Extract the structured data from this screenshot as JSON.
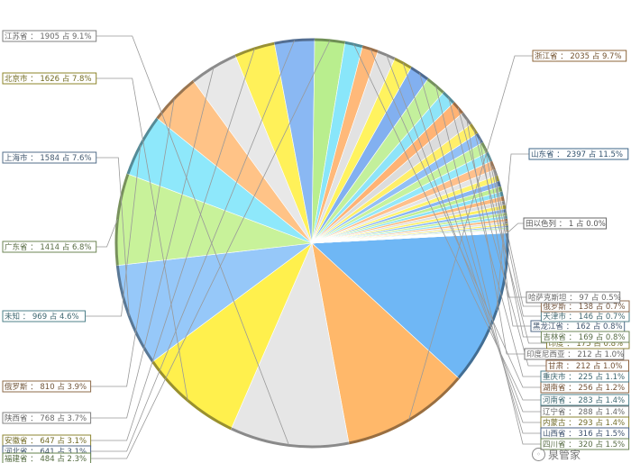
{
  "chart_data": {
    "type": "pie",
    "label_format": "{name} ： {value} 占 {pct}",
    "slices": [
      {
        "name": "山东省",
        "value": 2397,
        "pct": "11.5%",
        "color": "#6fb7f5"
      },
      {
        "name": "浙江省",
        "value": 2035,
        "pct": "9.7%",
        "color": "#ffb86a"
      },
      {
        "name": "江苏省",
        "value": 1905,
        "pct": "9.1%",
        "color": "#e6e6e6"
      },
      {
        "name": "北京市",
        "value": 1626,
        "pct": "7.8%",
        "color": "#fff04d"
      },
      {
        "name": "上海市",
        "value": 1584,
        "pct": "7.6%",
        "color": "#96c8f9"
      },
      {
        "name": "广东省",
        "value": 1414,
        "pct": "6.8%",
        "color": "#c8f29a"
      },
      {
        "name": "未知",
        "value": 969,
        "pct": "4.6%",
        "color": "#8ee8fb"
      },
      {
        "name": "俄罗斯",
        "value": 810,
        "pct": "3.9%",
        "color": "#ffc387"
      },
      {
        "name": "陕西省",
        "value": 768,
        "pct": "3.7%",
        "color": "#e8e8e8"
      },
      {
        "name": "安徽省",
        "value": 647,
        "pct": "3.1%",
        "color": "#fff159"
      },
      {
        "name": "河北省",
        "value": 641,
        "pct": "3.1%",
        "color": "#8ab8f3"
      },
      {
        "name": "福建省",
        "value": 484,
        "pct": "2.3%",
        "color": "#b9ee8e"
      },
      {
        "name": "河南省",
        "value": 283,
        "pct": "1.4%",
        "color": "#89e6fa"
      },
      {
        "name": "湖南省",
        "value": 256,
        "pct": "1.2%",
        "color": "#ffb97a"
      },
      {
        "name": "辽宁省",
        "value": 288,
        "pct": "1.4%",
        "color": "#e2e2e2"
      },
      {
        "name": "内蒙古",
        "value": 293,
        "pct": "1.4%",
        "color": "#fff35f"
      },
      {
        "name": "山西省",
        "value": 316,
        "pct": "1.5%",
        "color": "#82b0f0"
      },
      {
        "name": "四川省",
        "value": 320,
        "pct": "1.5%",
        "color": "#c3f09c"
      },
      {
        "name": "重庆市",
        "value": 225,
        "pct": "1.1%",
        "color": "#8ee4f8"
      },
      {
        "name": "甘肃",
        "value": 212,
        "pct": "1.0%",
        "color": "#ffb375"
      },
      {
        "name": "印度尼西亚",
        "value": 212,
        "pct": "1.0%",
        "color": "#dcdcdc"
      },
      {
        "name": "印度",
        "value": 175,
        "pct": "0.8%",
        "color": "#ffef6a"
      },
      {
        "name": "黑龙江省",
        "value": 162,
        "pct": "0.8%",
        "color": "#92c0f6"
      },
      {
        "name": "吉林省",
        "value": 169,
        "pct": "0.8%",
        "color": "#c6f29f"
      },
      {
        "name": "天津市",
        "value": 146,
        "pct": "0.7%",
        "color": "#95e8fa"
      },
      {
        "name": "俄罗斯",
        "value": 138,
        "pct": "0.7%",
        "color": "#ffc08c"
      },
      {
        "name": "哈萨克斯坦",
        "value": 97,
        "pct": "0.5%",
        "color": "#e5e5e5"
      },
      {
        "name": "",
        "value": 90,
        "pct": "",
        "color": "#fff46e"
      },
      {
        "name": "",
        "value": 85,
        "pct": "",
        "color": "#8ab6f2"
      },
      {
        "name": "",
        "value": 80,
        "pct": "",
        "color": "#c0ef95"
      },
      {
        "name": "",
        "value": 75,
        "pct": "",
        "color": "#8de3f6"
      },
      {
        "name": "",
        "value": 70,
        "pct": "",
        "color": "#ffba7e"
      },
      {
        "name": "",
        "value": 65,
        "pct": "",
        "color": "#dfdfdf"
      },
      {
        "name": "",
        "value": 60,
        "pct": "",
        "color": "#fff064"
      },
      {
        "name": "",
        "value": 55,
        "pct": "",
        "color": "#8fbdf4"
      },
      {
        "name": "",
        "value": 50,
        "pct": "",
        "color": "#c5f19a"
      },
      {
        "name": "",
        "value": 45,
        "pct": "",
        "color": "#93e6f9"
      },
      {
        "name": "",
        "value": 40,
        "pct": "",
        "color": "#ffbc82"
      },
      {
        "name": "",
        "value": 35,
        "pct": "",
        "color": "#e0e0e0"
      },
      {
        "name": "",
        "value": 30,
        "pct": "",
        "color": "#fff26a"
      },
      {
        "name": "",
        "value": 25,
        "pct": "",
        "color": "#8fb9f2"
      },
      {
        "name": "",
        "value": 20,
        "pct": "",
        "color": "#c0ee92"
      },
      {
        "name": "",
        "value": 15,
        "pct": "",
        "color": "#90e2f5"
      },
      {
        "name": "",
        "value": 12,
        "pct": "",
        "color": "#ffbd85"
      },
      {
        "name": "",
        "value": 10,
        "pct": "",
        "color": "#dddddd"
      },
      {
        "name": "",
        "value": 8,
        "pct": "",
        "color": "#fff16a"
      },
      {
        "name": "",
        "value": 6,
        "pct": "",
        "color": "#8cbaf2"
      },
      {
        "name": "",
        "value": 5,
        "pct": "",
        "color": "#c2ef96"
      },
      {
        "name": "",
        "value": 4,
        "pct": "",
        "color": "#92e5f8"
      },
      {
        "name": "",
        "value": 3,
        "pct": "",
        "color": "#ffbf86"
      },
      {
        "name": "",
        "value": 2,
        "pct": "",
        "color": "#e2e2e2"
      },
      {
        "name": "田以色列",
        "value": 1,
        "pct": "0.0%",
        "color": "#bbbbbb"
      }
    ]
  },
  "watermark": {
    "text": "泉管家"
  }
}
